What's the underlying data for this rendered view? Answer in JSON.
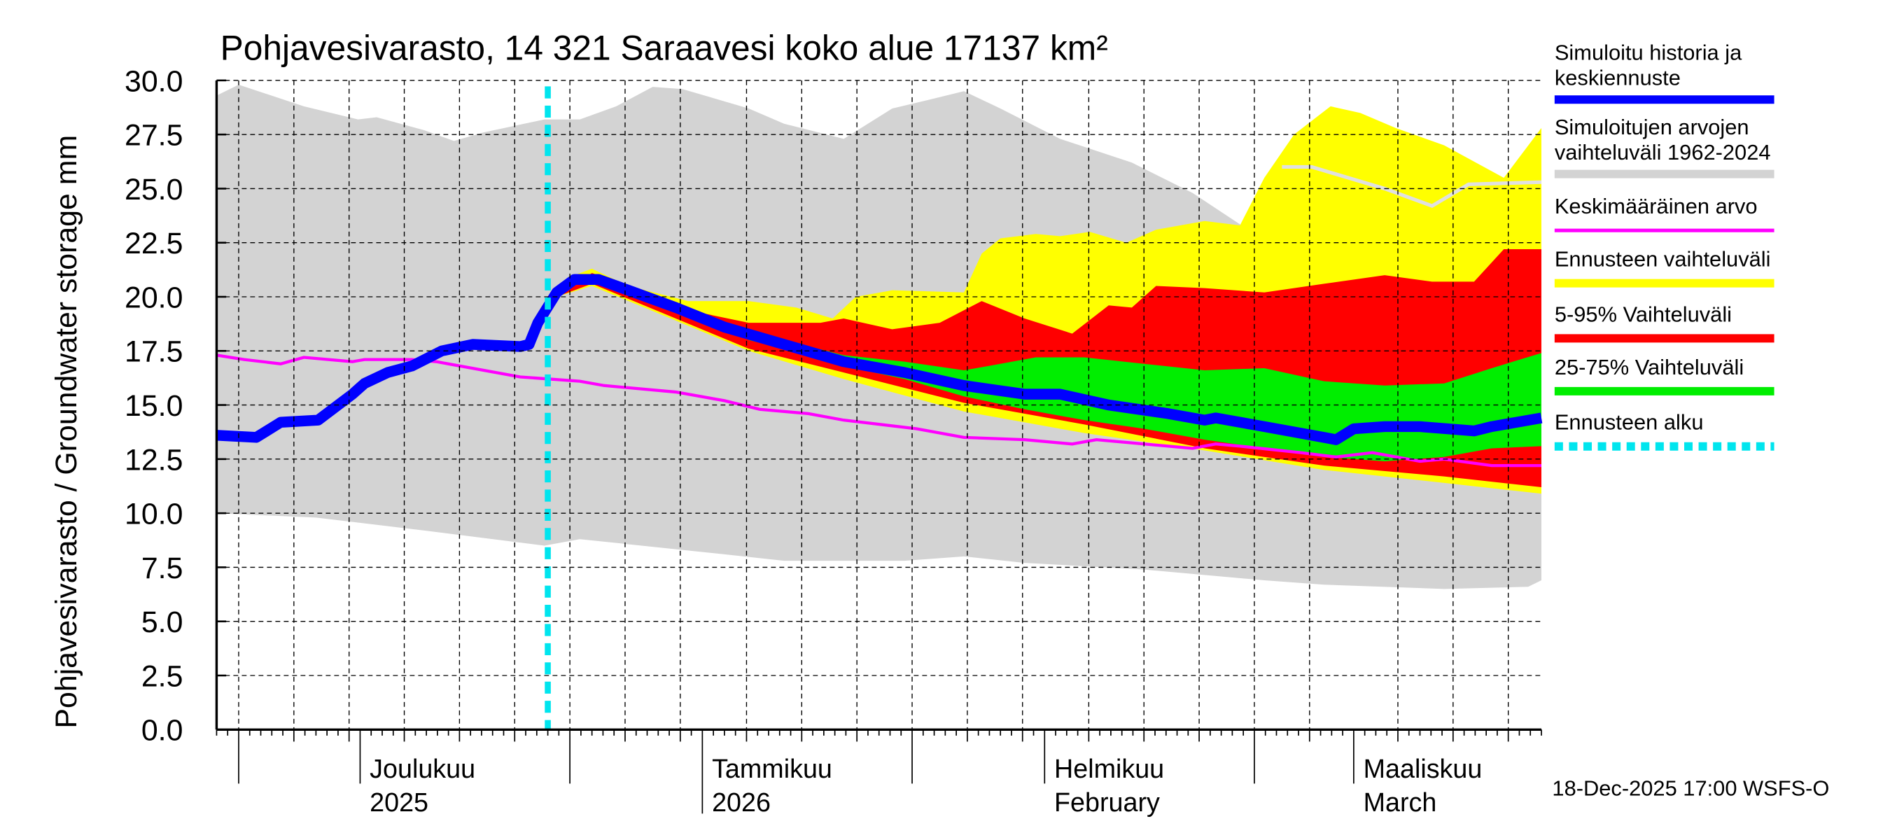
{
  "chart_data": {
    "type": "area",
    "title": "Pohjavesivarasto, 14 321 Saraavesi koko alue 17137 km²",
    "ylabel": "Pohjavesivarasto / Groundwater storage   mm",
    "xlabel": "",
    "x_unit": "days since 18-Nov-2025",
    "xlim": [
      0,
      120
    ],
    "ylim": [
      0,
      30
    ],
    "yticks": [
      "0.0",
      "2.5",
      "5.0",
      "7.5",
      "10.0",
      "12.5",
      "15.0",
      "17.5",
      "20.0",
      "22.5",
      "25.0",
      "27.5",
      "30.0"
    ],
    "grid": true,
    "forecast_start_day": 30,
    "month_labels": [
      {
        "day": 13,
        "line1": "Joulukuu",
        "line2": "2025"
      },
      {
        "day": 44,
        "line1": "Tammikuu",
        "line2": "2026"
      },
      {
        "day": 75,
        "line1": "Helmikuu",
        "line2": "February"
      },
      {
        "day": 103,
        "line1": "Maaliskuu",
        "line2": "March"
      }
    ],
    "history_range": {
      "upper": [
        [
          0,
          29.3
        ],
        [
          2,
          29.8
        ],
        [
          7.9,
          28.8
        ],
        [
          12.8,
          28.2
        ],
        [
          14.5,
          28.3
        ],
        [
          18.8,
          27.7
        ],
        [
          21.5,
          27.2
        ],
        [
          24.2,
          27.6
        ],
        [
          29.7,
          28.2
        ],
        [
          32.9,
          28.2
        ],
        [
          36.2,
          28.8
        ],
        [
          39.5,
          29.7
        ],
        [
          42.2,
          29.6
        ],
        [
          48.2,
          28.7
        ],
        [
          51.4,
          28.0
        ],
        [
          56.8,
          27.3
        ],
        [
          61.2,
          28.7
        ],
        [
          64.5,
          29.1
        ],
        [
          67.7,
          29.5
        ],
        [
          71,
          28.7
        ],
        [
          76.4,
          27.3
        ],
        [
          82.9,
          26.2
        ],
        [
          88.4,
          24.8
        ],
        [
          94.9,
          22.6
        ],
        [
          96.5,
          26.0
        ],
        [
          99.2,
          26.0
        ],
        [
          105.8,
          25.0
        ],
        [
          110.1,
          24.2
        ],
        [
          113.4,
          25.2
        ],
        [
          120,
          25.3
        ]
      ],
      "lower": [
        [
          0,
          10.0
        ],
        [
          9,
          9.8
        ],
        [
          18.8,
          9.2
        ],
        [
          29.7,
          8.5
        ],
        [
          32.9,
          8.8
        ],
        [
          46,
          8.1
        ],
        [
          51.4,
          7.8
        ],
        [
          62.3,
          7.8
        ],
        [
          67.7,
          8.0
        ],
        [
          73.2,
          7.7
        ],
        [
          84,
          7.4
        ],
        [
          94.9,
          6.9
        ],
        [
          100.3,
          6.7
        ],
        [
          111.2,
          6.5
        ],
        [
          118.8,
          6.6
        ],
        [
          120,
          6.9
        ]
      ]
    },
    "history_max_line": [
      [
        96.5,
        26.0
      ],
      [
        99.2,
        26.0
      ],
      [
        105.8,
        25.0
      ],
      [
        110.1,
        24.2
      ],
      [
        113.4,
        25.2
      ],
      [
        120,
        25.3
      ]
    ],
    "forecast_range": {
      "upper": [
        [
          30,
          19.2
        ],
        [
          30.8,
          20.0
        ],
        [
          32.4,
          21.0
        ],
        [
          34,
          21.3
        ],
        [
          37.3,
          20.5
        ],
        [
          42.7,
          19.8
        ],
        [
          48.2,
          19.8
        ],
        [
          52.5,
          19.5
        ],
        [
          55.8,
          19.0
        ],
        [
          57.9,
          20.0
        ],
        [
          61.2,
          20.3
        ],
        [
          67.7,
          20.2
        ],
        [
          69.3,
          22.0
        ],
        [
          71,
          22.7
        ],
        [
          74.2,
          22.9
        ],
        [
          76.4,
          22.8
        ],
        [
          79.1,
          23.0
        ],
        [
          82.4,
          22.5
        ],
        [
          85.1,
          23.1
        ],
        [
          89.5,
          23.5
        ],
        [
          92.7,
          23.3
        ],
        [
          94.9,
          25.5
        ],
        [
          97.6,
          27.5
        ],
        [
          100.9,
          28.8
        ],
        [
          103.6,
          28.5
        ],
        [
          106.8,
          27.8
        ],
        [
          111.2,
          27.0
        ],
        [
          116.6,
          25.5
        ],
        [
          120,
          27.8
        ]
      ],
      "lower": [
        [
          30,
          19.2
        ],
        [
          30.8,
          20.0
        ],
        [
          34,
          20.5
        ],
        [
          41.6,
          18.9
        ],
        [
          48.2,
          17.5
        ],
        [
          56.8,
          16.2
        ],
        [
          67.7,
          14.7
        ],
        [
          78.6,
          13.7
        ],
        [
          89.5,
          12.9
        ],
        [
          100.3,
          12.0
        ],
        [
          111.2,
          11.4
        ],
        [
          120,
          10.9
        ]
      ]
    },
    "range_5_95": {
      "upper": [
        [
          30,
          19.2
        ],
        [
          30.8,
          20.0
        ],
        [
          34,
          21.1
        ],
        [
          37.3,
          20.5
        ],
        [
          41.6,
          19.5
        ],
        [
          48.2,
          18.8
        ],
        [
          54.7,
          18.8
        ],
        [
          56.8,
          19.0
        ],
        [
          61.2,
          18.5
        ],
        [
          65.5,
          18.8
        ],
        [
          69.3,
          19.8
        ],
        [
          73.2,
          19.0
        ],
        [
          77.5,
          18.3
        ],
        [
          80.8,
          19.6
        ],
        [
          82.9,
          19.5
        ],
        [
          85.1,
          20.5
        ],
        [
          89.5,
          20.4
        ],
        [
          94.9,
          20.2
        ],
        [
          100.3,
          20.6
        ],
        [
          105.8,
          21.0
        ],
        [
          110.1,
          20.7
        ],
        [
          113.9,
          20.7
        ],
        [
          116.6,
          22.2
        ],
        [
          120,
          22.2
        ]
      ],
      "lower": [
        [
          30,
          19.2
        ],
        [
          30.8,
          20.0
        ],
        [
          34,
          20.6
        ],
        [
          41.6,
          19.0
        ],
        [
          48.2,
          17.6
        ],
        [
          56.8,
          16.5
        ],
        [
          67.7,
          15.1
        ],
        [
          78.6,
          14.1
        ],
        [
          89.5,
          13.0
        ],
        [
          100.3,
          12.2
        ],
        [
          111.2,
          11.7
        ],
        [
          120,
          11.2
        ]
      ]
    },
    "range_25_75": {
      "upper": [
        [
          48.2,
          18.3
        ],
        [
          51.4,
          18.0
        ],
        [
          56.8,
          17.3
        ],
        [
          62.3,
          17.0
        ],
        [
          67.7,
          16.6
        ],
        [
          69.9,
          16.8
        ],
        [
          74.2,
          17.2
        ],
        [
          78.6,
          17.2
        ],
        [
          84,
          16.9
        ],
        [
          89.5,
          16.6
        ],
        [
          94.9,
          16.7
        ],
        [
          100.3,
          16.1
        ],
        [
          105.8,
          15.9
        ],
        [
          111.2,
          16.0
        ],
        [
          115.5,
          16.7
        ],
        [
          120,
          17.4
        ]
      ],
      "lower": [
        [
          48.2,
          18.0
        ],
        [
          51.4,
          17.6
        ],
        [
          56.8,
          16.8
        ],
        [
          62.3,
          16.2
        ],
        [
          67.7,
          15.4
        ],
        [
          73.2,
          14.8
        ],
        [
          78.6,
          14.3
        ],
        [
          84,
          13.9
        ],
        [
          89.5,
          13.4
        ],
        [
          94.9,
          13.0
        ],
        [
          100.3,
          12.6
        ],
        [
          105.8,
          12.4
        ],
        [
          111.2,
          12.6
        ],
        [
          115.5,
          13.0
        ],
        [
          120,
          13.1
        ]
      ]
    },
    "series": [
      {
        "name": "Simuloitu historia ja keskiennuste",
        "color": "#0000ff",
        "points": [
          [
            0,
            13.6
          ],
          [
            3.6,
            13.5
          ],
          [
            5.8,
            14.2
          ],
          [
            9.2,
            14.3
          ],
          [
            12.3,
            15.5
          ],
          [
            13.4,
            16.0
          ],
          [
            15.5,
            16.5
          ],
          [
            17.7,
            16.8
          ],
          [
            20.4,
            17.5
          ],
          [
            23.2,
            17.8
          ],
          [
            27.5,
            17.7
          ],
          [
            28.3,
            17.8
          ],
          [
            29.1,
            18.8
          ],
          [
            30.8,
            20.2
          ],
          [
            32.4,
            20.8
          ],
          [
            34.6,
            20.8
          ],
          [
            37.3,
            20.3
          ],
          [
            41.6,
            19.5
          ],
          [
            46,
            18.6
          ],
          [
            51.4,
            17.8
          ],
          [
            56.8,
            17.0
          ],
          [
            62.3,
            16.5
          ],
          [
            67.7,
            15.9
          ],
          [
            73.2,
            15.5
          ],
          [
            76.4,
            15.5
          ],
          [
            80.8,
            15.0
          ],
          [
            86.2,
            14.6
          ],
          [
            89.5,
            14.3
          ],
          [
            90.5,
            14.4
          ],
          [
            94.9,
            14.0
          ],
          [
            100.3,
            13.5
          ],
          [
            101.4,
            13.4
          ],
          [
            103,
            13.9
          ],
          [
            105.8,
            14.0
          ],
          [
            109,
            14.0
          ],
          [
            113.9,
            13.8
          ],
          [
            115.5,
            14.0
          ],
          [
            120,
            14.4
          ]
        ]
      },
      {
        "name": "Keskimääräinen arvo",
        "color": "#ff00ff",
        "points": [
          [
            0,
            17.3
          ],
          [
            2.5,
            17.1
          ],
          [
            5.8,
            16.9
          ],
          [
            7.9,
            17.2
          ],
          [
            12.3,
            17.0
          ],
          [
            13.4,
            17.1
          ],
          [
            17.7,
            17.1
          ],
          [
            19.9,
            17.0
          ],
          [
            24.2,
            16.6
          ],
          [
            27.5,
            16.3
          ],
          [
            32.9,
            16.1
          ],
          [
            35.1,
            15.9
          ],
          [
            41.6,
            15.6
          ],
          [
            46,
            15.2
          ],
          [
            49.2,
            14.8
          ],
          [
            53.6,
            14.6
          ],
          [
            56.8,
            14.3
          ],
          [
            63.4,
            13.9
          ],
          [
            67.7,
            13.5
          ],
          [
            73.2,
            13.4
          ],
          [
            77.5,
            13.2
          ],
          [
            79.7,
            13.4
          ],
          [
            84,
            13.2
          ],
          [
            88.4,
            13.0
          ],
          [
            90.5,
            13.2
          ],
          [
            92.7,
            13.1
          ],
          [
            98.2,
            12.8
          ],
          [
            101.4,
            12.6
          ],
          [
            104.7,
            12.8
          ],
          [
            109,
            12.4
          ],
          [
            111.2,
            12.5
          ],
          [
            115.5,
            12.2
          ],
          [
            120,
            12.2
          ]
        ]
      }
    ],
    "colors": {
      "history": "#d3d3d3",
      "history_max": "#e0e0e0",
      "forecast": "#ffff00",
      "p5_95": "#ff0000",
      "p25_75": "#00ee00",
      "median": "#0000ff",
      "mean": "#ff00ff",
      "forecast_start": "#00e5ee"
    },
    "legend": [
      {
        "line1": "Simuloitu historia ja",
        "line2": "keskiennuste",
        "color": "#0000ff",
        "style": "thick"
      },
      {
        "line1": "Simuloitujen arvojen",
        "line2": "vaihteluväli 1962-2024",
        "color": "#d3d3d3",
        "style": "thick"
      },
      {
        "line1": "Keskimääräinen arvo",
        "line2": "",
        "color": "#ff00ff",
        "style": "thin"
      },
      {
        "line1": "Ennusteen vaihteluväli",
        "line2": "",
        "color": "#ffff00",
        "style": "thick"
      },
      {
        "line1": "5-95% Vaihteluväli",
        "line2": "",
        "color": "#ff0000",
        "style": "thick"
      },
      {
        "line1": "25-75% Vaihteluväli",
        "line2": "",
        "color": "#00ee00",
        "style": "thick"
      },
      {
        "line1": "Ennusteen alku",
        "line2": "",
        "color": "#00e5ee",
        "style": "dotted"
      }
    ],
    "legend_position": "right",
    "footer": "18-Dec-2025 17:00 WSFS-O"
  }
}
